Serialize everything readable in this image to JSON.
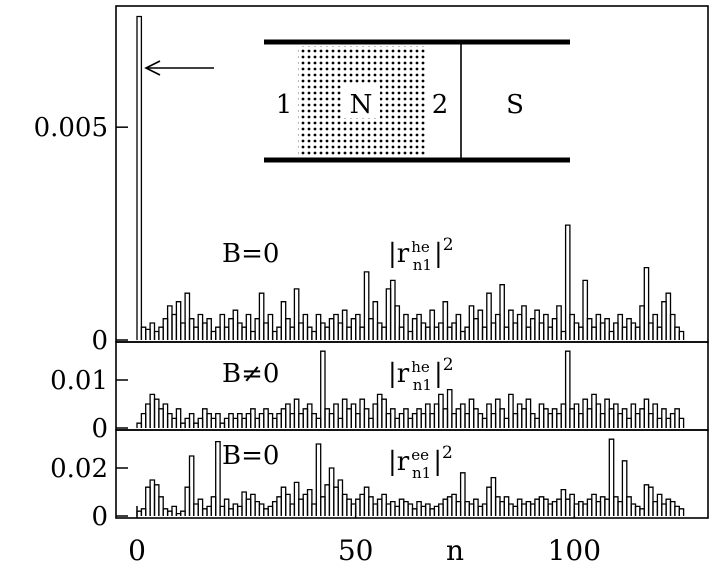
{
  "chart_data": [
    {
      "type": "bar",
      "panel": "top",
      "label_b": "B=0",
      "label_r": "|r",
      "label_sup": "he",
      "label_sub": "n1",
      "label_pow": "2",
      "ylim": [
        0,
        0.0078
      ],
      "yticks": [
        {
          "v": 0,
          "t": "0"
        },
        {
          "v": 0.005,
          "t": "0.005"
        }
      ],
      "values": [
        0.0076,
        0.0003,
        0.00025,
        0.0004,
        0.0002,
        0.0003,
        0.0005,
        0.0008,
        0.0006,
        0.0009,
        0.0004,
        0.0011,
        0.0005,
        0.0003,
        0.0006,
        0.0004,
        0.0005,
        0.0002,
        0.0003,
        0.0006,
        0.0003,
        0.0005,
        0.0007,
        0.0004,
        0.0003,
        0.0006,
        0.0002,
        0.0005,
        0.0011,
        0.0004,
        0.0006,
        0.0002,
        0.0003,
        0.0009,
        0.0005,
        0.0003,
        0.0012,
        0.0004,
        0.0006,
        0.0003,
        0.0002,
        0.0006,
        0.0004,
        0.0003,
        0.0005,
        0.0006,
        0.0004,
        0.0007,
        0.0003,
        0.0005,
        0.0006,
        0.0003,
        0.0016,
        0.0005,
        0.0009,
        0.0004,
        0.0003,
        0.0012,
        0.0014,
        0.0008,
        0.0003,
        0.0006,
        0.0002,
        0.0005,
        0.0006,
        0.0004,
        0.0003,
        0.0007,
        0.0003,
        0.0004,
        0.0009,
        0.0003,
        0.0004,
        0.0006,
        0.0002,
        0.0003,
        0.0008,
        0.0005,
        0.0007,
        0.0003,
        0.0011,
        0.0004,
        0.0006,
        0.0013,
        0.0003,
        0.0007,
        0.0004,
        0.0006,
        0.0008,
        0.0003,
        0.0005,
        0.0007,
        0.0004,
        0.0006,
        0.0003,
        0.0005,
        0.0008,
        0.0002,
        0.0027,
        0.0006,
        0.0004,
        0.0003,
        0.0014,
        0.0005,
        0.0003,
        0.0006,
        0.0004,
        0.0005,
        0.0002,
        0.0004,
        0.0006,
        0.0003,
        0.0005,
        0.0004,
        0.0003,
        0.0008,
        0.0017,
        0.0004,
        0.0006,
        0.0003,
        0.0009,
        0.0011,
        0.0006,
        0.0003,
        0.0002
      ]
    },
    {
      "type": "bar",
      "panel": "middle",
      "label_b": "B≠0",
      "label_r": "|r",
      "label_sup": "he",
      "label_sub": "n1",
      "label_pow": "2",
      "ylim": [
        0,
        0.0175
      ],
      "yticks": [
        {
          "v": 0,
          "t": "0"
        },
        {
          "v": 0.01,
          "t": "0.01"
        }
      ],
      "values": [
        0.001,
        0.003,
        0.005,
        0.007,
        0.006,
        0.004,
        0.005,
        0.003,
        0.002,
        0.004,
        0.001,
        0.002,
        0.003,
        0.001,
        0.002,
        0.004,
        0.003,
        0.002,
        0.003,
        0.001,
        0.002,
        0.003,
        0.002,
        0.003,
        0.002,
        0.003,
        0.004,
        0.002,
        0.003,
        0.004,
        0.003,
        0.002,
        0.003,
        0.004,
        0.005,
        0.003,
        0.006,
        0.003,
        0.004,
        0.005,
        0.003,
        0.002,
        0.016,
        0.004,
        0.003,
        0.005,
        0.002,
        0.006,
        0.004,
        0.005,
        0.003,
        0.006,
        0.004,
        0.002,
        0.005,
        0.007,
        0.006,
        0.003,
        0.004,
        0.002,
        0.003,
        0.004,
        0.002,
        0.003,
        0.004,
        0.003,
        0.005,
        0.003,
        0.005,
        0.007,
        0.004,
        0.008,
        0.003,
        0.004,
        0.005,
        0.003,
        0.006,
        0.004,
        0.003,
        0.002,
        0.005,
        0.003,
        0.006,
        0.004,
        0.002,
        0.007,
        0.003,
        0.005,
        0.004,
        0.006,
        0.003,
        0.002,
        0.005,
        0.004,
        0.003,
        0.004,
        0.003,
        0.005,
        0.016,
        0.004,
        0.005,
        0.003,
        0.006,
        0.004,
        0.007,
        0.005,
        0.003,
        0.006,
        0.004,
        0.005,
        0.003,
        0.004,
        0.002,
        0.005,
        0.003,
        0.004,
        0.006,
        0.003,
        0.005,
        0.002,
        0.004,
        0.002,
        0.003,
        0.004,
        0.002
      ]
    },
    {
      "type": "bar",
      "panel": "bottom",
      "label_b": "B=0",
      "label_r": "|r",
      "label_sup": "ee",
      "label_sub": "n1",
      "label_pow": "2",
      "xlabel": "n",
      "xticks": [
        {
          "v": 0,
          "t": "0"
        },
        {
          "v": 50,
          "t": "50"
        },
        {
          "v": 100,
          "t": "100"
        }
      ],
      "xlim": [
        0,
        126
      ],
      "ylim": [
        0,
        0.035
      ],
      "yticks": [
        {
          "v": 0,
          "t": "0"
        },
        {
          "v": 0.02,
          "t": "0.02"
        }
      ],
      "values": [
        0.002,
        0.003,
        0.012,
        0.015,
        0.013,
        0.008,
        0.003,
        0.002,
        0.004,
        0.001,
        0.002,
        0.012,
        0.025,
        0.005,
        0.007,
        0.003,
        0.004,
        0.008,
        0.031,
        0.004,
        0.007,
        0.003,
        0.005,
        0.004,
        0.01,
        0.007,
        0.009,
        0.006,
        0.005,
        0.003,
        0.004,
        0.006,
        0.008,
        0.012,
        0.009,
        0.005,
        0.014,
        0.007,
        0.009,
        0.011,
        0.005,
        0.03,
        0.008,
        0.013,
        0.02,
        0.012,
        0.015,
        0.009,
        0.007,
        0.005,
        0.007,
        0.009,
        0.012,
        0.008,
        0.005,
        0.007,
        0.009,
        0.005,
        0.006,
        0.004,
        0.007,
        0.006,
        0.005,
        0.003,
        0.006,
        0.004,
        0.005,
        0.003,
        0.004,
        0.005,
        0.007,
        0.008,
        0.009,
        0.006,
        0.018,
        0.006,
        0.005,
        0.007,
        0.004,
        0.005,
        0.012,
        0.016,
        0.008,
        0.006,
        0.008,
        0.005,
        0.004,
        0.007,
        0.005,
        0.006,
        0.005,
        0.007,
        0.008,
        0.007,
        0.005,
        0.006,
        0.007,
        0.011,
        0.007,
        0.009,
        0.005,
        0.006,
        0.005,
        0.007,
        0.009,
        0.006,
        0.008,
        0.007,
        0.032,
        0.008,
        0.006,
        0.023,
        0.008,
        0.005,
        0.004,
        0.003,
        0.013,
        0.012,
        0.006,
        0.009,
        0.005,
        0.007,
        0.006,
        0.004,
        0.003
      ]
    }
  ],
  "inset": {
    "left_label": "1",
    "normal_label": "N",
    "right_label": "2",
    "sc_label": "S"
  }
}
